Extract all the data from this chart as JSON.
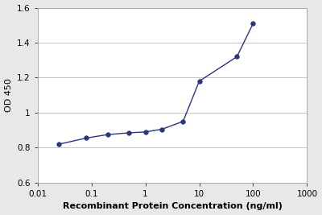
{
  "x": [
    0.025,
    0.08,
    0.2,
    0.5,
    1.0,
    2.0,
    5.0,
    10.0,
    50.0,
    100.0
  ],
  "y": [
    0.82,
    0.855,
    0.875,
    0.885,
    0.89,
    0.905,
    0.95,
    1.18,
    1.32,
    1.51
  ],
  "line_color": "#2b3580",
  "marker": "o",
  "marker_facecolor": "#2b3580",
  "marker_size": 4,
  "xlabel": "Recombinant Protein Concentration (ng/ml)",
  "ylabel": "OD 450",
  "xlim": [
    0.01,
    1000
  ],
  "ylim": [
    0.6,
    1.6
  ],
  "yticks": [
    0.6,
    0.8,
    1.0,
    1.2,
    1.4,
    1.6
  ],
  "xticks": [
    0.01,
    0.1,
    1,
    10,
    100,
    1000
  ],
  "xtick_labels": [
    "0.01",
    "0.1",
    "1",
    "10",
    "100",
    "1000"
  ],
  "plot_bg_color": "#ffffff",
  "fig_bg_color": "#e8e8e8",
  "grid_color": "#bbbbbb",
  "xlabel_fontsize": 8,
  "ylabel_fontsize": 8,
  "tick_fontsize": 7.5,
  "linewidth": 1.0
}
